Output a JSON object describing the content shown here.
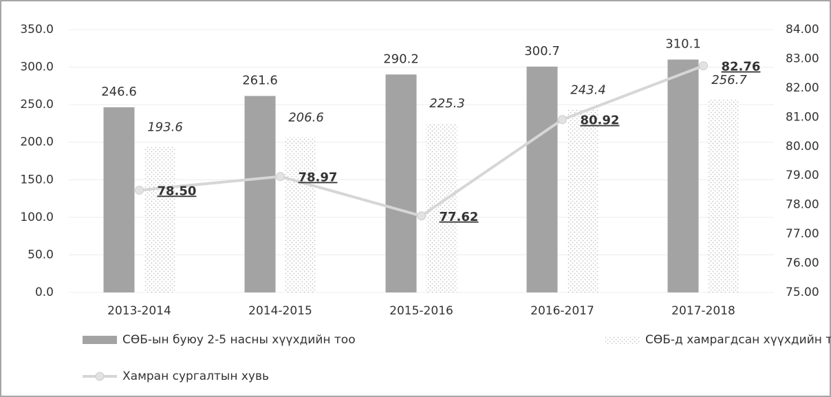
{
  "chart_data": {
    "type": "bar",
    "categories": [
      "2013-2014",
      "2014-2015",
      "2015-2016",
      "2016-2017",
      "2017-2018"
    ],
    "series": [
      {
        "name": "СӨБ-ын буюу 2-5 насны хүүхдийн тоо",
        "type": "bar",
        "color": "#a3a3a3",
        "values": [
          246.6,
          261.6,
          290.2,
          300.7,
          310.1
        ]
      },
      {
        "name": "СӨБ-д хамрагдсан хүүхдийн тоо, мянга",
        "type": "bar",
        "color": "#bdbdbd",
        "values": [
          193.6,
          206.6,
          225.3,
          243.4,
          256.7
        ]
      },
      {
        "name": "Хамран сургалтын хувь",
        "type": "line",
        "axis": "y2",
        "color": "#d6d6d6",
        "values": [
          78.5,
          78.97,
          77.62,
          80.92,
          82.76
        ],
        "value_labels": [
          "78.50",
          "78.97",
          "77.62",
          "80.92",
          "82.76"
        ]
      }
    ],
    "ylim": [
      0,
      350
    ],
    "yticks": [
      {
        "value": 0,
        "label": "0.0"
      },
      {
        "value": 50,
        "label": "50.0"
      },
      {
        "value": 100,
        "label": "100.0"
      },
      {
        "value": 150,
        "label": "150.0"
      },
      {
        "value": 200,
        "label": "200.0"
      },
      {
        "value": 250,
        "label": "250.0"
      },
      {
        "value": 300,
        "label": "300.0"
      },
      {
        "value": 350,
        "label": "350.0"
      }
    ],
    "y2lim": [
      75,
      84
    ],
    "y2ticks": [
      {
        "value": 75,
        "label": "75.00"
      },
      {
        "value": 76,
        "label": "76.00"
      },
      {
        "value": 77,
        "label": "77.00"
      },
      {
        "value": 78,
        "label": "78.00"
      },
      {
        "value": 79,
        "label": "79.00"
      },
      {
        "value": 80,
        "label": "80.00"
      },
      {
        "value": 81,
        "label": "81.00"
      },
      {
        "value": 82,
        "label": "82.00"
      },
      {
        "value": 83,
        "label": "83.00"
      },
      {
        "value": 84,
        "label": "84.00"
      }
    ],
    "grid": true
  }
}
